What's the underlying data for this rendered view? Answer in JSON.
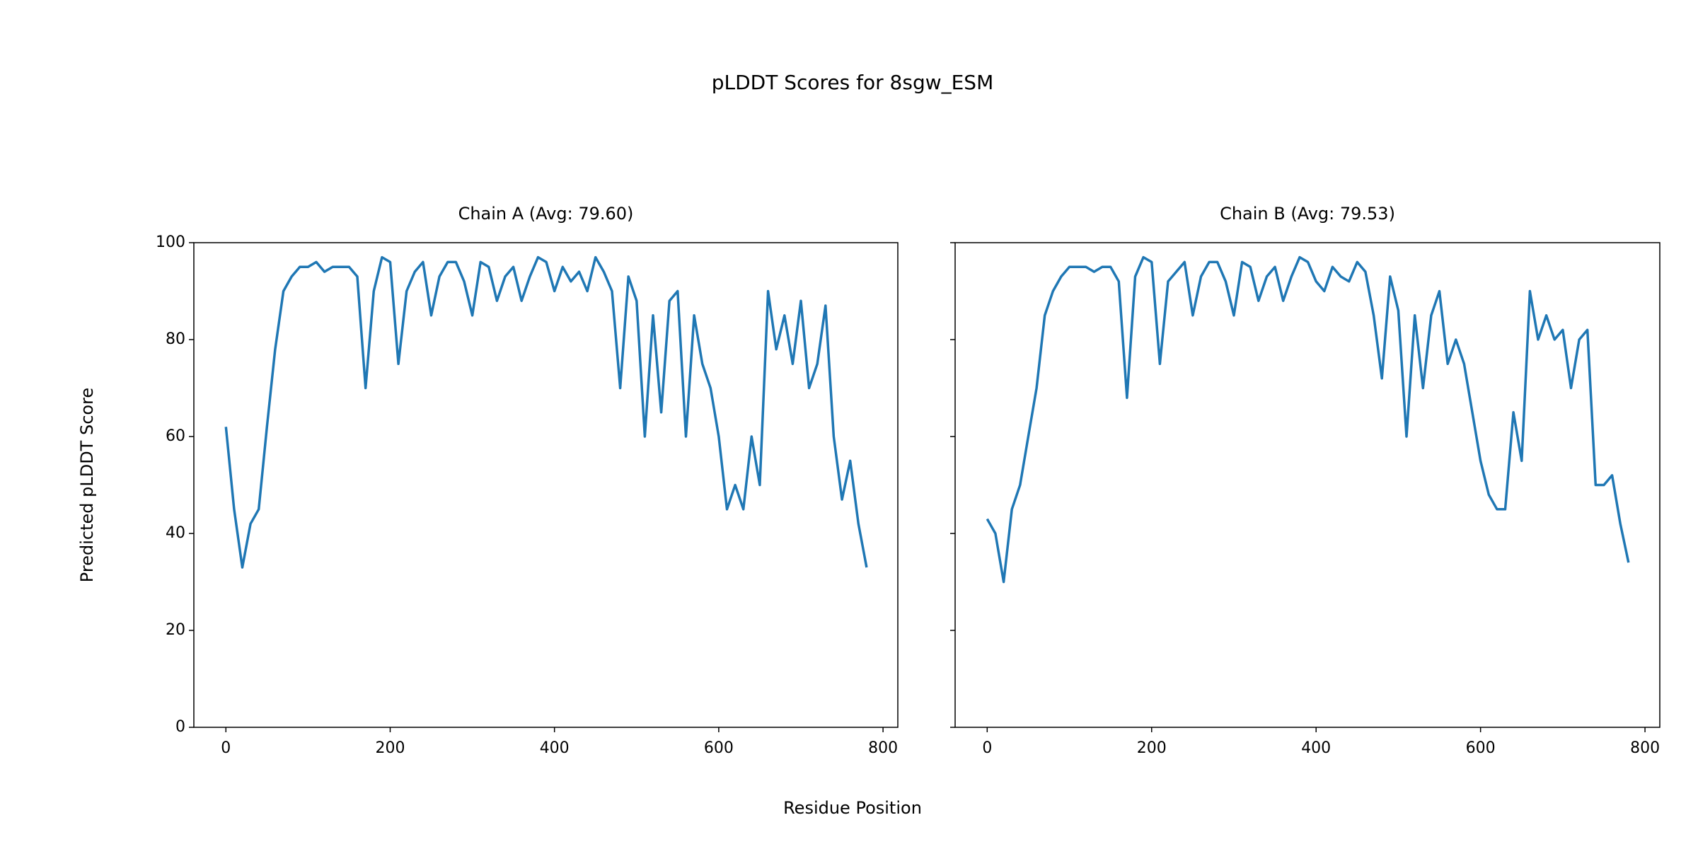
{
  "title": "pLDDT Scores for 8sgw_ESM",
  "xlabel": "Residue Position",
  "chart_data": [
    {
      "type": "line",
      "title": "Chain A (Avg: 79.60)",
      "ylabel": "Predicted pLDDT Score",
      "color": "#1f77b4",
      "x": [
        0,
        10,
        20,
        30,
        40,
        50,
        60,
        70,
        80,
        90,
        100,
        110,
        120,
        130,
        140,
        150,
        160,
        170,
        180,
        190,
        200,
        210,
        220,
        230,
        240,
        250,
        260,
        270,
        280,
        290,
        300,
        310,
        320,
        330,
        340,
        350,
        360,
        370,
        380,
        390,
        400,
        410,
        420,
        430,
        440,
        450,
        460,
        470,
        480,
        490,
        500,
        510,
        520,
        530,
        540,
        550,
        560,
        570,
        580,
        590,
        600,
        610,
        620,
        630,
        640,
        650,
        660,
        670,
        680,
        690,
        700,
        710,
        720,
        730,
        740,
        750,
        760,
        770,
        780
      ],
      "values": [
        62,
        45,
        33,
        42,
        45,
        62,
        78,
        90,
        93,
        95,
        95,
        96,
        94,
        95,
        95,
        95,
        93,
        70,
        90,
        97,
        96,
        75,
        90,
        94,
        96,
        85,
        93,
        96,
        96,
        92,
        85,
        96,
        95,
        88,
        93,
        95,
        88,
        93,
        97,
        96,
        90,
        95,
        92,
        94,
        90,
        97,
        94,
        90,
        70,
        93,
        88,
        60,
        85,
        65,
        88,
        90,
        60,
        85,
        75,
        70,
        60,
        45,
        50,
        45,
        60,
        50,
        90,
        78,
        85,
        75,
        88,
        70,
        75,
        87,
        60,
        47,
        55,
        42,
        33
      ],
      "xlim": [
        -39,
        818
      ],
      "xticks": [
        0,
        200,
        400,
        600,
        800
      ],
      "ylim": [
        0,
        100
      ],
      "yticks": [
        0,
        20,
        40,
        60,
        80,
        100
      ]
    },
    {
      "type": "line",
      "title": "Chain B (Avg: 79.53)",
      "sharey": true,
      "color": "#1f77b4",
      "x": [
        0,
        10,
        20,
        30,
        40,
        50,
        60,
        70,
        80,
        90,
        100,
        110,
        120,
        130,
        140,
        150,
        160,
        170,
        180,
        190,
        200,
        210,
        220,
        230,
        240,
        250,
        260,
        270,
        280,
        290,
        300,
        310,
        320,
        330,
        340,
        350,
        360,
        370,
        380,
        390,
        400,
        410,
        420,
        430,
        440,
        450,
        460,
        470,
        480,
        490,
        500,
        510,
        520,
        530,
        540,
        550,
        560,
        570,
        580,
        590,
        600,
        610,
        620,
        630,
        640,
        650,
        660,
        670,
        680,
        690,
        700,
        710,
        720,
        730,
        740,
        750,
        760,
        770,
        780
      ],
      "values": [
        43,
        40,
        30,
        45,
        50,
        60,
        70,
        85,
        90,
        93,
        95,
        95,
        95,
        94,
        95,
        95,
        92,
        68,
        93,
        97,
        96,
        75,
        92,
        94,
        96,
        85,
        93,
        96,
        96,
        92,
        85,
        96,
        95,
        88,
        93,
        95,
        88,
        93,
        97,
        96,
        92,
        90,
        95,
        93,
        92,
        96,
        94,
        85,
        72,
        93,
        86,
        60,
        85,
        70,
        85,
        90,
        75,
        80,
        75,
        65,
        55,
        48,
        45,
        45,
        65,
        55,
        90,
        80,
        85,
        80,
        82,
        70,
        80,
        82,
        50,
        50,
        52,
        42,
        34
      ],
      "xlim": [
        -39,
        818
      ],
      "xticks": [
        0,
        200,
        400,
        600,
        800
      ],
      "ylim": [
        0,
        100
      ],
      "yticks": [
        0,
        20,
        40,
        60,
        80,
        100
      ]
    }
  ]
}
